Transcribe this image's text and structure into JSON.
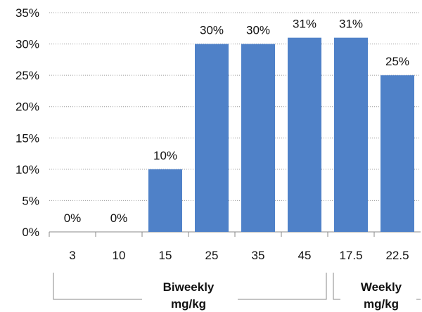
{
  "chart_data": {
    "type": "bar",
    "categories": [
      "3",
      "10",
      "15",
      "25",
      "35",
      "45",
      "17.5",
      "22.5"
    ],
    "values": [
      0,
      0,
      10,
      30,
      30,
      31,
      31,
      25
    ],
    "data_labels": [
      "0%",
      "0%",
      "10%",
      "30%",
      "30%",
      "31%",
      "31%",
      "25%"
    ],
    "ylim": [
      0,
      35
    ],
    "yticks": [
      0,
      5,
      10,
      15,
      20,
      25,
      30,
      35
    ],
    "ytick_labels": [
      "0%",
      "5%",
      "10%",
      "15%",
      "20%",
      "25%",
      "30%",
      "35%"
    ],
    "grid": true,
    "bar_color": "#4f81c8",
    "groups": [
      {
        "line1": "Biweekly",
        "line2": "mg/kg",
        "span": [
          0,
          5
        ]
      },
      {
        "line1": "Weekly",
        "line2": "mg/kg",
        "span": [
          6,
          7
        ]
      }
    ]
  }
}
